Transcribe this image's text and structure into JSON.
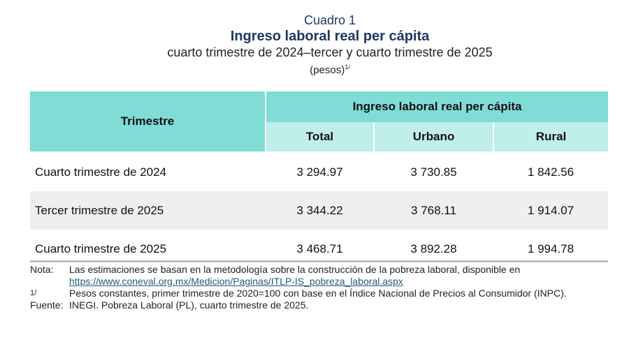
{
  "title": {
    "label": "Cuadro 1",
    "main": "Ingreso laboral real per cápita",
    "subtitle": "cuarto trimestre de 2024–tercer y cuarto trimestre de 2025",
    "units": "(pesos)",
    "units_note": "1/"
  },
  "table": {
    "row_header": "Trimestre",
    "group_header": "Ingreso laboral real per cápita",
    "columns": [
      "Total",
      "Urbano",
      "Rural"
    ],
    "rows": [
      {
        "label": "Cuarto trimestre de 2024",
        "values": [
          "3 294.97",
          "3 730.85",
          "1 842.56"
        ]
      },
      {
        "label": "Tercer trimestre de 2025",
        "values": [
          "3 344.22",
          "3 768.11",
          "1 914.07"
        ]
      },
      {
        "label": "Cuarto trimestre de 2025",
        "values": [
          "3 468.71",
          "3 892.28",
          "1 994.78"
        ]
      }
    ]
  },
  "notes": {
    "nota_key": "Nota:",
    "nota_text": "Las estimaciones se basan en la metodología sobre la construcción de la pobreza laboral, disponible en",
    "nota_link": "https://www.coneval.org.mx/Medicion/Paginas/ITLP-IS_pobreza_laboral.aspx",
    "fn_key": "1/",
    "fn_text": "Pesos constantes, primer trimestre de 2020=100 con base en el Índice Nacional de Precios al Consumidor (INPC).",
    "fuente_key": "Fuente:",
    "fuente_text": "INEGI. Pobreza Laboral (PL), cuarto trimestre de 2025."
  }
}
